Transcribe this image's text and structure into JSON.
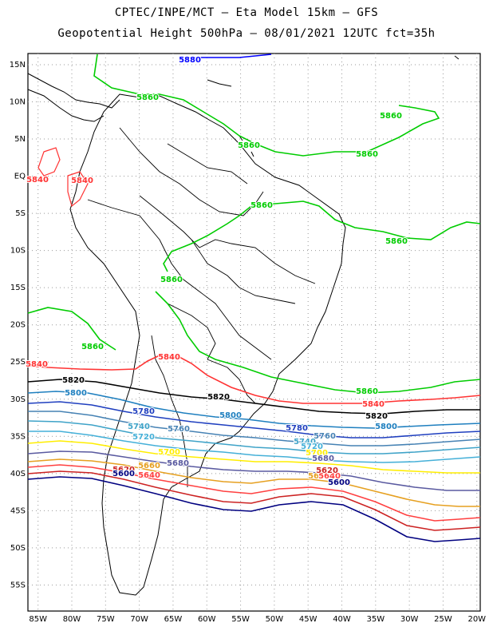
{
  "header": {
    "line1": "CPTEC/INPE/MCT –  Eta Model 15km – GFS",
    "line2": "Geopotential Height 500hPa – 08/01/2021 12UTC fct=35h"
  },
  "map": {
    "lat_labels": [
      "15N",
      "10N",
      "5N",
      "EQ",
      "5S",
      "10S",
      "15S",
      "20S",
      "25S",
      "30S",
      "35S",
      "40S",
      "45S",
      "50S",
      "55S"
    ],
    "lon_labels": [
      "85W",
      "80W",
      "75W",
      "70W",
      "65W",
      "60W",
      "55W",
      "50W",
      "45W",
      "40W",
      "35W",
      "30W",
      "25W",
      "20W"
    ],
    "contour_colors": {
      "5880": "#0000ff",
      "5860": "#00cc00",
      "5840": "#ff3333",
      "5820": "#000000",
      "5800": "#1e7fbf",
      "5780": "#1f3fbf",
      "5760": "#4682b4",
      "5740": "#3fa3c8",
      "5720": "#45b0d8",
      "5700": "#ffee00",
      "5680": "#5a5aa0",
      "5660": "#e6a020",
      "5640": "#ff4040",
      "5620": "#cc2222",
      "5600": "#000080"
    },
    "contour_labels": [
      {
        "id": "l5880",
        "text": "5880"
      },
      {
        "id": "l5860a",
        "text": "5860"
      },
      {
        "id": "l5860b",
        "text": "5860"
      },
      {
        "id": "l5860c",
        "text": "5860"
      },
      {
        "id": "l5860d",
        "text": "5860"
      },
      {
        "id": "l5860e",
        "text": "5860"
      },
      {
        "id": "l5860f",
        "text": "5860"
      },
      {
        "id": "l5860g",
        "text": "5860"
      },
      {
        "id": "l5860h",
        "text": "5860"
      },
      {
        "id": "l5860i",
        "text": "5860"
      },
      {
        "id": "l5840a",
        "text": "5840"
      },
      {
        "id": "l5840b",
        "text": "5840"
      },
      {
        "id": "l5840c",
        "text": "5840"
      },
      {
        "id": "l5840d",
        "text": "5840"
      },
      {
        "id": "l5840e",
        "text": "5840"
      },
      {
        "id": "l5840f",
        "text": "5840"
      },
      {
        "id": "l5820a",
        "text": "5820"
      },
      {
        "id": "l5820b",
        "text": "5820"
      },
      {
        "id": "l5820c",
        "text": "5820"
      },
      {
        "id": "l5800a",
        "text": "5800"
      },
      {
        "id": "l5800b",
        "text": "5800"
      },
      {
        "id": "l5800c",
        "text": "5800"
      },
      {
        "id": "l5780a",
        "text": "5780"
      },
      {
        "id": "l5780b",
        "text": "5780"
      },
      {
        "id": "l5760a",
        "text": "5760"
      },
      {
        "id": "l5760b",
        "text": "5760"
      },
      {
        "id": "l5740a",
        "text": "5740"
      },
      {
        "id": "l5740b",
        "text": "5740"
      },
      {
        "id": "l5720a",
        "text": "5720"
      },
      {
        "id": "l5720b",
        "text": "5720"
      },
      {
        "id": "l5700a",
        "text": "5700"
      },
      {
        "id": "l5700b",
        "text": "5700"
      },
      {
        "id": "l5680a",
        "text": "5680"
      },
      {
        "id": "l5680b",
        "text": "5680"
      },
      {
        "id": "l5660a",
        "text": "5660"
      },
      {
        "id": "l5660b",
        "text": "5660"
      },
      {
        "id": "l5640a",
        "text": "5640"
      },
      {
        "id": "l5640b",
        "text": "5640"
      },
      {
        "id": "l5620a",
        "text": "5620"
      },
      {
        "id": "l5620b",
        "text": "5620"
      },
      {
        "id": "l5600a",
        "text": "5600"
      },
      {
        "id": "l5600b",
        "text": "5600"
      }
    ]
  }
}
